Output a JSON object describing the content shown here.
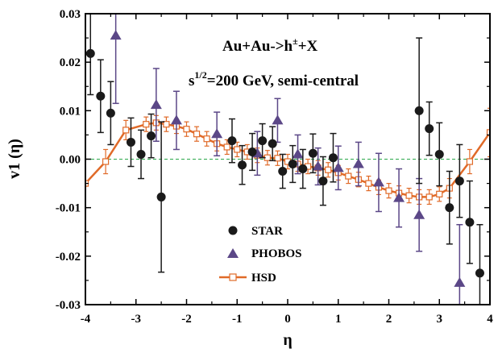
{
  "chart_data": {
    "type": "scatter",
    "xlabel": "η",
    "ylabel": "v1 (η)",
    "xlim": [
      -4,
      4
    ],
    "ylim": [
      -0.03,
      0.03
    ],
    "xticks": [
      "-4",
      "-3",
      "-2",
      "-1",
      "0",
      "1",
      "2",
      "3",
      "4"
    ],
    "yticks": [
      "-0.03",
      "-0.02",
      "-0.01",
      "0.00",
      "0.01",
      "0.02",
      "0.03"
    ],
    "annotations": {
      "line1_base": "Au+Au->h",
      "line1_sup": "±",
      "line1_end": "+X",
      "line2_base": "s",
      "line2_sup": "1/2",
      "line2_end": "=200 GeV, semi-central"
    },
    "legend_position": "bottom-center",
    "zero_line": true,
    "series": [
      {
        "name": "STAR",
        "marker": "circle",
        "color": "#1a1a1a",
        "points": [
          {
            "x": -3.9,
            "y": 0.0218,
            "err": 0.0085
          },
          {
            "x": -3.7,
            "y": 0.013,
            "err": 0.0075
          },
          {
            "x": -3.5,
            "y": 0.0095,
            "err": 0.0065
          },
          {
            "x": -3.1,
            "y": 0.0035,
            "err": 0.005
          },
          {
            "x": -2.9,
            "y": 0.001,
            "err": 0.005
          },
          {
            "x": -2.7,
            "y": 0.0048,
            "err": 0.0045
          },
          {
            "x": -2.5,
            "y": -0.0078,
            "err": 0.0155
          },
          {
            "x": -1.1,
            "y": 0.0038,
            "err": 0.0045
          },
          {
            "x": -0.9,
            "y": -0.0012,
            "err": 0.004
          },
          {
            "x": -0.7,
            "y": 0.0015,
            "err": 0.0038
          },
          {
            "x": -0.5,
            "y": 0.0038,
            "err": 0.0035
          },
          {
            "x": -0.3,
            "y": 0.0032,
            "err": 0.0035
          },
          {
            "x": -0.1,
            "y": -0.0025,
            "err": 0.0035
          },
          {
            "x": 0.1,
            "y": -0.001,
            "err": 0.0038
          },
          {
            "x": 0.3,
            "y": -0.002,
            "err": 0.004
          },
          {
            "x": 0.5,
            "y": 0.0012,
            "err": 0.004
          },
          {
            "x": 0.7,
            "y": -0.0045,
            "err": 0.005
          },
          {
            "x": 0.9,
            "y": 0.0003,
            "err": 0.005
          },
          {
            "x": 2.6,
            "y": 0.01,
            "err": 0.015
          },
          {
            "x": 2.8,
            "y": 0.0063,
            "err": 0.0055
          },
          {
            "x": 3.0,
            "y": 0.001,
            "err": 0.0065
          },
          {
            "x": 3.2,
            "y": -0.01,
            "err": 0.0075
          },
          {
            "x": 3.4,
            "y": -0.0045,
            "err": 0.0075
          },
          {
            "x": 3.6,
            "y": -0.013,
            "err": 0.0085
          },
          {
            "x": 3.8,
            "y": -0.0235,
            "err": 0.01
          }
        ]
      },
      {
        "name": "PHOBOS",
        "marker": "triangle",
        "color": "#5b4787",
        "points": [
          {
            "x": -3.4,
            "y": 0.0255,
            "err": 0.014
          },
          {
            "x": -2.6,
            "y": 0.0112,
            "err": 0.0075
          },
          {
            "x": -2.2,
            "y": 0.008,
            "err": 0.006
          },
          {
            "x": -1.4,
            "y": 0.0052,
            "err": 0.0045
          },
          {
            "x": -0.6,
            "y": 0.0012,
            "err": 0.0045
          },
          {
            "x": -0.2,
            "y": 0.008,
            "err": 0.0045
          },
          {
            "x": 0.2,
            "y": 0.001,
            "err": 0.004
          },
          {
            "x": 0.6,
            "y": -0.0015,
            "err": 0.0038
          },
          {
            "x": 1.0,
            "y": -0.0018,
            "err": 0.0045
          },
          {
            "x": 1.4,
            "y": -0.001,
            "err": 0.0045
          },
          {
            "x": 1.8,
            "y": -0.0048,
            "err": 0.006
          },
          {
            "x": 2.2,
            "y": -0.008,
            "err": 0.006
          },
          {
            "x": 2.6,
            "y": -0.0115,
            "err": 0.0075
          },
          {
            "x": 3.4,
            "y": -0.0255,
            "err": 0.012
          }
        ]
      },
      {
        "name": "HSD",
        "marker": "open-square-line",
        "color": "#e06a28",
        "points": [
          {
            "x": -4.0,
            "y": -0.005,
            "err": 0.005
          },
          {
            "x": -3.6,
            "y": -0.0005,
            "err": 0.0025
          },
          {
            "x": -3.2,
            "y": 0.006,
            "err": 0.002
          },
          {
            "x": -2.8,
            "y": 0.0072,
            "err": 0.0015
          },
          {
            "x": -2.6,
            "y": 0.0075,
            "err": 0.0015
          },
          {
            "x": -2.4,
            "y": 0.0072,
            "err": 0.0015
          },
          {
            "x": -2.2,
            "y": 0.0068,
            "err": 0.0015
          },
          {
            "x": -2.0,
            "y": 0.0062,
            "err": 0.0015
          },
          {
            "x": -1.8,
            "y": 0.0052,
            "err": 0.0015
          },
          {
            "x": -1.6,
            "y": 0.0042,
            "err": 0.0015
          },
          {
            "x": -1.4,
            "y": 0.0032,
            "err": 0.0015
          },
          {
            "x": -1.2,
            "y": 0.0025,
            "err": 0.0015
          },
          {
            "x": -1.0,
            "y": 0.002,
            "err": 0.0015
          },
          {
            "x": -0.8,
            "y": 0.0015,
            "err": 0.0015
          },
          {
            "x": -0.6,
            "y": 0.0008,
            "err": 0.0015
          },
          {
            "x": -0.4,
            "y": 0.0003,
            "err": 0.0015
          },
          {
            "x": -0.2,
            "y": 0.0002,
            "err": 0.0015
          },
          {
            "x": 0.0,
            "y": -0.0005,
            "err": 0.0015
          },
          {
            "x": 0.2,
            "y": -0.001,
            "err": 0.0015
          },
          {
            "x": 0.4,
            "y": -0.0015,
            "err": 0.0015
          },
          {
            "x": 0.6,
            "y": -0.0018,
            "err": 0.0015
          },
          {
            "x": 0.8,
            "y": -0.0022,
            "err": 0.0015
          },
          {
            "x": 1.0,
            "y": -0.0028,
            "err": 0.0015
          },
          {
            "x": 1.2,
            "y": -0.0035,
            "err": 0.0015
          },
          {
            "x": 1.4,
            "y": -0.0042,
            "err": 0.0015
          },
          {
            "x": 1.6,
            "y": -0.005,
            "err": 0.0015
          },
          {
            "x": 1.8,
            "y": -0.0058,
            "err": 0.0015
          },
          {
            "x": 2.0,
            "y": -0.0065,
            "err": 0.0015
          },
          {
            "x": 2.2,
            "y": -0.007,
            "err": 0.0015
          },
          {
            "x": 2.4,
            "y": -0.0075,
            "err": 0.0015
          },
          {
            "x": 2.6,
            "y": -0.0078,
            "err": 0.0015
          },
          {
            "x": 2.8,
            "y": -0.0078,
            "err": 0.0015
          },
          {
            "x": 3.0,
            "y": -0.0072,
            "err": 0.0015
          },
          {
            "x": 3.2,
            "y": -0.006,
            "err": 0.002
          },
          {
            "x": 3.6,
            "y": -0.0005,
            "err": 0.0025
          },
          {
            "x": 4.0,
            "y": 0.0055,
            "err": 0.005
          }
        ]
      }
    ]
  }
}
